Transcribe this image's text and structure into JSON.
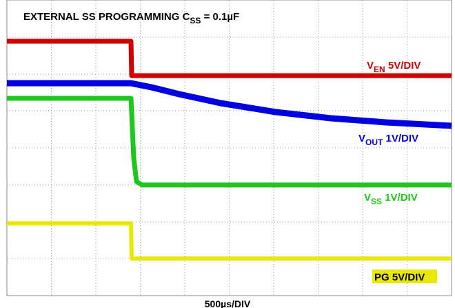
{
  "title": {
    "prefix": "EXTERNAL SS PROGRAMMING C",
    "sub": "SS",
    "rest": " = 0.1µF"
  },
  "traces": [
    {
      "prefix": "V",
      "sub": "EN",
      "rest": " 5V/DIV",
      "color": "#d40000"
    },
    {
      "prefix": "V",
      "sub": "OUT",
      "rest": " 1V/DIV",
      "color": "#0000e0"
    },
    {
      "prefix": "V",
      "sub": "SS",
      "rest": " 1V/DIV",
      "color": "#1cc81c"
    },
    {
      "prefix": "PG 5V/DIV",
      "color": "#e8e800"
    }
  ],
  "timebase": "500µs/DIV"
}
